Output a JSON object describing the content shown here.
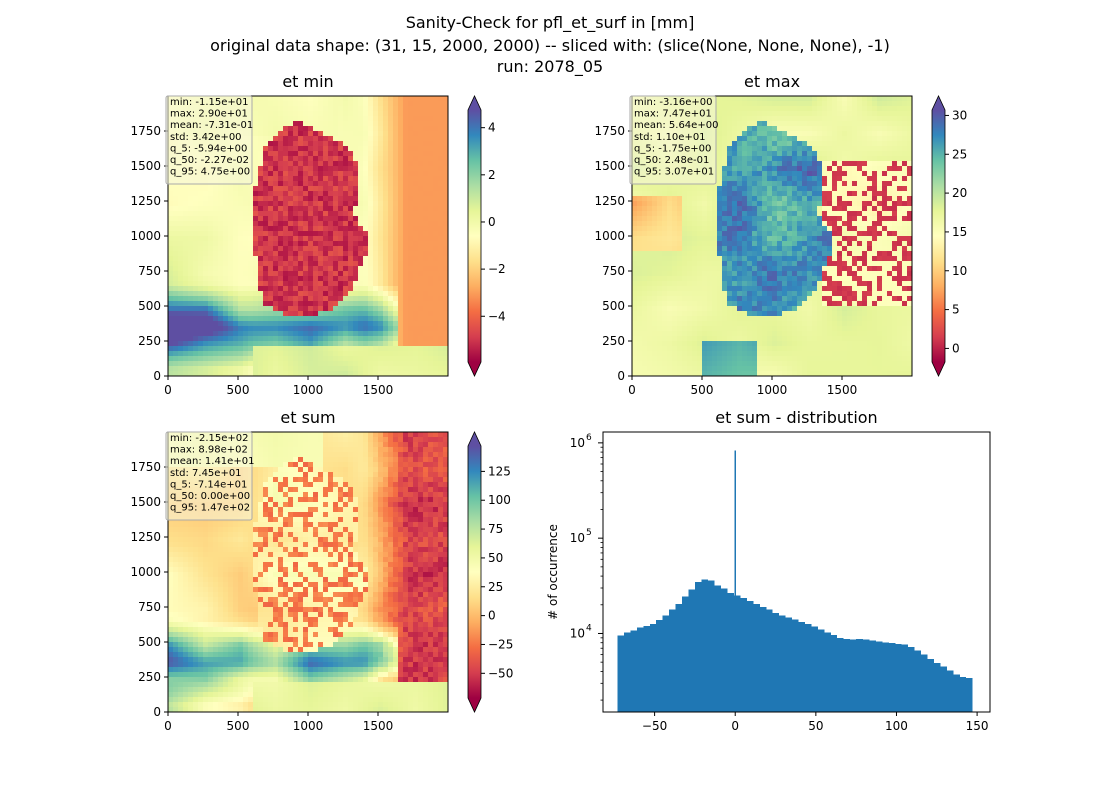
{
  "figure": {
    "title_line1": "Sanity-Check for pfl_et_surf in [mm]",
    "title_line2": "original data shape: (31, 15, 2000, 2000) -- sliced with: (slice(None, None, None), -1)",
    "title_line3": "run: 2078_05"
  },
  "chart_data": [
    {
      "type": "heatmap",
      "title": "et min",
      "colormap": "Spectral",
      "xlim": [
        0,
        2000
      ],
      "ylim": [
        0,
        2000
      ],
      "xticks": [
        "0",
        "500",
        "1000",
        "1500"
      ],
      "yticks": [
        "0",
        "250",
        "500",
        "750",
        "1000",
        "1250",
        "1500",
        "1750"
      ],
      "colorbar_range": [
        -5.94,
        4.75
      ],
      "colorbar_ticks": [
        "−4",
        "−2",
        "0",
        "2",
        "4"
      ],
      "colorbar_tick_values": [
        -4,
        -2,
        0,
        2,
        4
      ],
      "colorbar_extend": "both",
      "stats": [
        "min: -1.15e+01",
        "max: 2.90e+01",
        "mean: -7.31e-01",
        "std: 3.42e+00",
        "q_5: -5.94e+00",
        "q_50: -2.27e-02",
        "q_95: 4.75e+00"
      ],
      "stats_placement": "top-left",
      "map_pattern": "region-low"
    },
    {
      "type": "heatmap",
      "title": "et max",
      "colormap": "Spectral",
      "xlim": [
        0,
        2000
      ],
      "ylim": [
        0,
        2000
      ],
      "xticks": [
        "0",
        "500",
        "1000",
        "1500"
      ],
      "yticks": [
        "0",
        "250",
        "500",
        "750",
        "1000",
        "1250",
        "1500",
        "1750"
      ],
      "colorbar_range": [
        -1.75,
        30.7
      ],
      "colorbar_ticks": [
        "0",
        "5",
        "10",
        "15",
        "20",
        "25",
        "30"
      ],
      "colorbar_tick_values": [
        0,
        5,
        10,
        15,
        20,
        25,
        30
      ],
      "colorbar_extend": "both",
      "stats": [
        "min: -3.16e+00",
        "max: 7.47e+01",
        "mean: 5.64e+00",
        "std: 1.10e+01",
        "q_5: -1.75e+00",
        "q_50: 2.48e-01",
        "q_95: 3.07e+01"
      ],
      "stats_placement": "top-left",
      "map_pattern": "region-high"
    },
    {
      "type": "heatmap",
      "title": "et sum",
      "colormap": "Spectral",
      "xlim": [
        0,
        2000
      ],
      "ylim": [
        0,
        2000
      ],
      "xticks": [
        "0",
        "500",
        "1000",
        "1500"
      ],
      "yticks": [
        "0",
        "250",
        "500",
        "750",
        "1000",
        "1250",
        "1500",
        "1750"
      ],
      "colorbar_range": [
        -71.4,
        147
      ],
      "colorbar_ticks": [
        "−50",
        "−25",
        "0",
        "25",
        "50",
        "75",
        "100",
        "125"
      ],
      "colorbar_tick_values": [
        -50,
        -25,
        0,
        25,
        50,
        75,
        100,
        125
      ],
      "colorbar_extend": "both",
      "stats": [
        "min: -2.15e+02",
        "max: 8.98e+02",
        "mean: 1.41e+01",
        "std: 7.45e+01",
        "q_5: -7.14e+01",
        "q_50: 0.00e+00",
        "q_95: 1.47e+02"
      ],
      "stats_placement": "top-left",
      "map_pattern": "region-mixed"
    },
    {
      "type": "bar",
      "title": "et sum - distribution",
      "ylabel": "# of occurrence",
      "xlabel": "",
      "yscale": "log",
      "xlim": [
        -82,
        158
      ],
      "ylim": [
        1500,
        1300000
      ],
      "xticks": [
        "−50",
        "0",
        "50",
        "100",
        "150"
      ],
      "xtick_values": [
        -50,
        0,
        50,
        100,
        150
      ],
      "yticks": [
        "10",
        "10",
        "10"
      ],
      "ytick_exponents": [
        "4",
        "5",
        "6"
      ],
      "ytick_values": [
        10000,
        100000,
        1000000
      ],
      "color": "#1f77b4",
      "x": [
        -71,
        -67,
        -63,
        -59,
        -55,
        -51,
        -47,
        -43,
        -39,
        -35,
        -31,
        -27,
        -23,
        -19,
        -15,
        -11,
        -7,
        -3,
        1,
        5,
        9,
        13,
        17,
        21,
        25,
        29,
        33,
        37,
        41,
        45,
        49,
        53,
        57,
        61,
        65,
        69,
        73,
        77,
        81,
        85,
        89,
        93,
        97,
        101,
        105,
        109,
        113,
        117,
        121,
        125,
        129,
        133,
        137,
        141,
        145
      ],
      "values": [
        9500,
        10200,
        10800,
        11500,
        12000,
        12500,
        13800,
        15500,
        17800,
        20500,
        24500,
        29000,
        34500,
        37000,
        36000,
        32000,
        29500,
        26500,
        25000,
        23500,
        22000,
        20500,
        19000,
        17800,
        16500,
        15500,
        14800,
        14000,
        13200,
        12500,
        11800,
        11000,
        10300,
        9600,
        9000,
        8700,
        8600,
        8700,
        8600,
        8400,
        8200,
        8000,
        7900,
        7800,
        7700,
        7200,
        6600,
        6000,
        5400,
        4900,
        4500,
        4100,
        3700,
        3500,
        3400
      ],
      "spike": {
        "x": 0,
        "value": 830000
      },
      "bin_width": 4
    }
  ]
}
